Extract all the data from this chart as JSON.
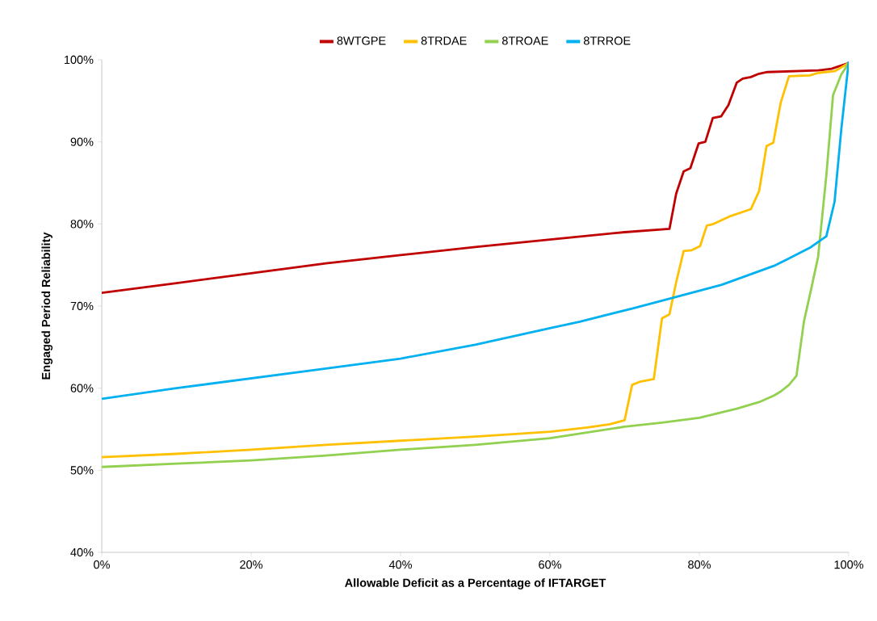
{
  "chart_data": {
    "type": "line",
    "xlabel": "Allowable Deficit as a Percentage of IFTARGET",
    "ylabel": "Engaged Period Reliability",
    "xlim": [
      0,
      100
    ],
    "ylim": [
      40,
      100
    ],
    "xticks": [
      {
        "value": 0,
        "label": "0%"
      },
      {
        "value": 20,
        "label": "20%"
      },
      {
        "value": 40,
        "label": "40%"
      },
      {
        "value": 60,
        "label": "60%"
      },
      {
        "value": 80,
        "label": "80%"
      },
      {
        "value": 100,
        "label": "100%"
      }
    ],
    "yticks": [
      {
        "value": 40,
        "label": "40%"
      },
      {
        "value": 50,
        "label": "50%"
      },
      {
        "value": 60,
        "label": "60%"
      },
      {
        "value": 70,
        "label": "70%"
      },
      {
        "value": 80,
        "label": "80%"
      },
      {
        "value": 90,
        "label": "90%"
      },
      {
        "value": 100,
        "label": "100%"
      }
    ],
    "legend": "top",
    "grid": false,
    "marker": "none",
    "line_style": "solid",
    "series": [
      {
        "name": "8WTGPE",
        "color": "#c00000",
        "x": [
          0,
          10,
          20,
          30,
          40,
          50,
          60,
          70,
          76,
          76.9,
          77.9,
          78.8,
          79.9,
          80.8,
          81.8,
          82.9,
          83.9,
          85,
          85.8,
          86.9,
          88,
          89.1,
          95.9,
          97.7,
          100
        ],
        "values": [
          71.6,
          72.8,
          74.0,
          75.2,
          76.2,
          77.2,
          78.1,
          79.0,
          79.4,
          83.7,
          86.4,
          86.8,
          89.8,
          90.0,
          92.9,
          93.1,
          94.5,
          97.2,
          97.7,
          97.9,
          98.3,
          98.5,
          98.7,
          98.9,
          99.6
        ]
      },
      {
        "name": "8TRDAE",
        "color": "#ffc000",
        "x": [
          0,
          10,
          20,
          30,
          40,
          50,
          60,
          65,
          68,
          70,
          71,
          72.1,
          73.9,
          75,
          76,
          76.9,
          77.9,
          79,
          80.1,
          81,
          81.9,
          84,
          86.9,
          88,
          89,
          89.9,
          90.9,
          92,
          94.8,
          95.9,
          98.1,
          100
        ],
        "values": [
          51.6,
          52.0,
          52.5,
          53.1,
          53.6,
          54.1,
          54.7,
          55.2,
          55.6,
          56.1,
          60.4,
          60.8,
          61.1,
          68.5,
          69.0,
          72.9,
          76.7,
          76.8,
          77.3,
          79.8,
          80.0,
          80.9,
          81.8,
          84.0,
          89.5,
          89.9,
          94.8,
          98.0,
          98.1,
          98.4,
          98.6,
          99.6
        ]
      },
      {
        "name": "8TROAE",
        "color": "#92d050",
        "x": [
          0,
          10,
          20,
          30,
          40,
          50,
          60,
          65,
          70,
          75,
          80,
          85,
          88,
          90,
          90.9,
          92,
          93,
          94,
          95,
          95.9,
          97,
          97.9,
          99,
          100
        ],
        "values": [
          50.4,
          50.8,
          51.2,
          51.8,
          52.5,
          53.1,
          53.9,
          54.6,
          55.3,
          55.8,
          56.4,
          57.5,
          58.3,
          59.1,
          59.6,
          60.4,
          61.5,
          68.1,
          72.2,
          76.0,
          85.9,
          95.7,
          98.2,
          99.6
        ]
      },
      {
        "name": "8TRROE",
        "color": "#00b0f0",
        "x": [
          0,
          10,
          20,
          30,
          40,
          50,
          60,
          64,
          71,
          76,
          83,
          90,
          92,
          94.8,
          97,
          98.1,
          99,
          100
        ],
        "values": [
          58.7,
          60.0,
          61.2,
          62.4,
          63.6,
          65.3,
          67.3,
          68.1,
          69.7,
          70.9,
          72.6,
          74.9,
          75.8,
          77.1,
          78.5,
          82.7,
          91.5,
          99.8
        ]
      }
    ]
  }
}
